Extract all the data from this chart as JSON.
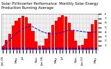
{
  "title": "Solar PV/Inverter Performance  Monthly Solar Energy Production Running Average",
  "bar_values": [
    15,
    42,
    72,
    108,
    128,
    142,
    152,
    145,
    118,
    82,
    38,
    18,
    20,
    48,
    78,
    112,
    130,
    145,
    155,
    148,
    120,
    86,
    40,
    20,
    22,
    50,
    80,
    115,
    132
  ],
  "avg_values": [
    15,
    28,
    43,
    59,
    73,
    84,
    93,
    100,
    103,
    102,
    94,
    86,
    79,
    74,
    71,
    71,
    72,
    75,
    78,
    83,
    86,
    87,
    85,
    83,
    81,
    79,
    78,
    78,
    79
  ],
  "bar_color": "#ff0000",
  "avg_color": "#0000cc",
  "bg_color": "#ffffff",
  "plot_bg": "#f0f0f0",
  "grid_color": "#aaaaaa",
  "ylim": [
    0,
    160
  ],
  "ytick_vals": [
    20,
    40,
    60,
    80,
    100,
    120,
    140,
    160
  ],
  "ytick_labels": [
    "1",
    "2",
    "3",
    "4",
    "5",
    "6",
    "7",
    "F"
  ],
  "title_fontsize": 3.8,
  "tick_fontsize": 3.2,
  "xlabel_labels": [
    "Jan 05",
    "",
    "",
    "",
    "May",
    "",
    "Jul",
    "",
    "",
    "",
    "Nov",
    "",
    "Jan 06",
    "",
    "",
    "",
    "May",
    "",
    "Jul",
    "",
    "",
    "",
    "Nov",
    "",
    "Jan 07",
    "",
    "",
    "",
    "May"
  ]
}
